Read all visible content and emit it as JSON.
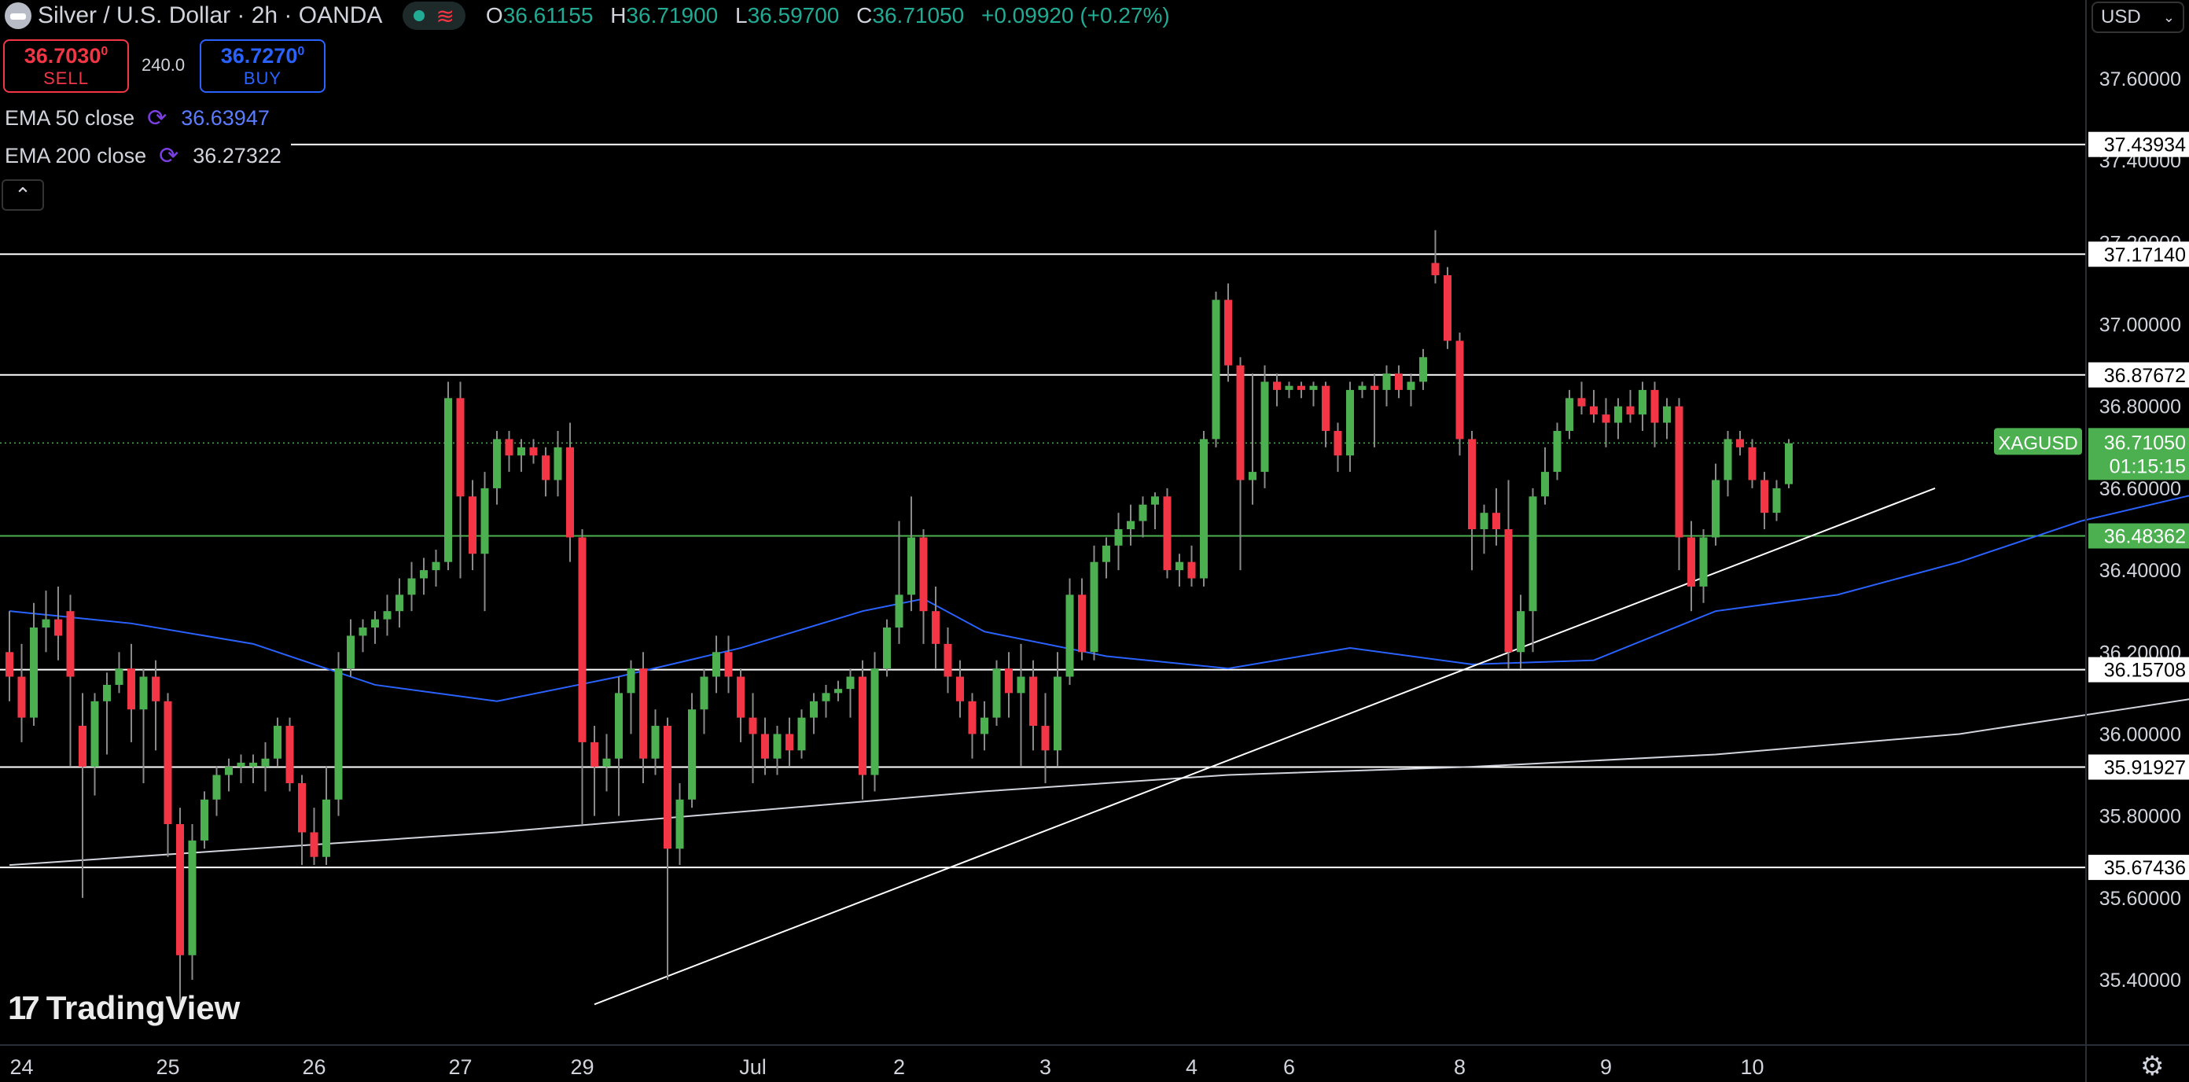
{
  "header": {
    "title": "Silver / U.S. Dollar · 2h · OANDA",
    "ohlc": [
      {
        "key": "O",
        "value": "36.61155"
      },
      {
        "key": "H",
        "value": "36.71900"
      },
      {
        "key": "L",
        "value": "36.59700"
      },
      {
        "key": "C",
        "value": "36.71050"
      }
    ],
    "change": "+0.09920 (+0.27%)",
    "market_status_icon": "green-dot-icon",
    "pill_icon": "wave-icon"
  },
  "trade": {
    "sell_price": "36.7030",
    "sell_price_sup": "0",
    "sell_label": "SELL",
    "spread": "240.0",
    "buy_price": "36.7270",
    "buy_price_sup": "0",
    "buy_label": "BUY"
  },
  "indicators": [
    {
      "name": "EMA 50 close",
      "value": "36.63947",
      "color": "#2962ff"
    },
    {
      "name": "EMA 200 close",
      "value": "36.27322",
      "color": "#d1d4dc"
    }
  ],
  "currency_selector": "USD",
  "branding": {
    "logo_text": "TradingView",
    "logo_mark": "17"
  },
  "colors": {
    "up": "#4caf50",
    "down": "#f23645",
    "ema50": "#2962ff",
    "ema200": "#d1d4dc",
    "level": "#ffffff",
    "current": "#4caf50"
  },
  "chart_data": {
    "type": "candlestick",
    "symbol": "XAGUSD",
    "current_price": "36.71050",
    "countdown": "01:15:15",
    "y_range": [
      35.28,
      37.73
    ],
    "y_ticks": [
      "37.60000",
      "37.40000",
      "37.20000",
      "37.00000",
      "36.80000",
      "36.60000",
      "36.40000",
      "36.20000",
      "36.00000",
      "35.80000",
      "35.60000",
      "35.40000"
    ],
    "x_ticks": [
      {
        "label": "24",
        "pos": 1
      },
      {
        "label": "25",
        "pos": 13
      },
      {
        "label": "26",
        "pos": 25
      },
      {
        "label": "27",
        "pos": 37
      },
      {
        "label": "29",
        "pos": 47
      },
      {
        "label": "Jul",
        "pos": 61
      },
      {
        "label": "2",
        "pos": 73
      },
      {
        "label": "3",
        "pos": 85
      },
      {
        "label": "4",
        "pos": 97
      },
      {
        "label": "6",
        "pos": 105
      },
      {
        "label": "8",
        "pos": 119
      },
      {
        "label": "9",
        "pos": 131
      },
      {
        "label": "10",
        "pos": 143
      }
    ],
    "horizontal_levels": [
      {
        "price": 37.43934,
        "label": "37.43934",
        "style": "white"
      },
      {
        "price": 37.1714,
        "label": "37.17140",
        "style": "white"
      },
      {
        "price": 36.87672,
        "label": "36.87672",
        "style": "white"
      },
      {
        "price": 36.48362,
        "label": "36.48362",
        "style": "green"
      },
      {
        "price": 36.15708,
        "label": "36.15708",
        "style": "white"
      },
      {
        "price": 35.91927,
        "label": "35.91927",
        "style": "white"
      },
      {
        "price": 35.67436,
        "label": "35.67436",
        "style": "white"
      }
    ],
    "trendline": {
      "from": {
        "pos": 48,
        "price": 35.34
      },
      "to": {
        "pos": 158,
        "price": 36.6
      }
    },
    "candles": [
      {
        "o": 36.2,
        "h": 36.3,
        "l": 36.08,
        "c": 36.14
      },
      {
        "o": 36.14,
        "h": 36.22,
        "l": 35.98,
        "c": 36.04
      },
      {
        "o": 36.04,
        "h": 36.32,
        "l": 36.02,
        "c": 36.26
      },
      {
        "o": 36.26,
        "h": 36.35,
        "l": 36.2,
        "c": 36.28
      },
      {
        "o": 36.28,
        "h": 36.36,
        "l": 36.18,
        "c": 36.24
      },
      {
        "o": 36.3,
        "h": 36.34,
        "l": 35.92,
        "c": 36.14
      },
      {
        "o": 36.02,
        "h": 36.1,
        "l": 35.6,
        "c": 35.92
      },
      {
        "o": 35.92,
        "h": 36.1,
        "l": 35.85,
        "c": 36.08
      },
      {
        "o": 36.08,
        "h": 36.15,
        "l": 35.95,
        "c": 36.12
      },
      {
        "o": 36.12,
        "h": 36.2,
        "l": 36.1,
        "c": 36.16
      },
      {
        "o": 36.16,
        "h": 36.22,
        "l": 35.98,
        "c": 36.06
      },
      {
        "o": 36.06,
        "h": 36.16,
        "l": 35.88,
        "c": 36.14
      },
      {
        "o": 36.14,
        "h": 36.18,
        "l": 35.96,
        "c": 36.08
      },
      {
        "o": 36.08,
        "h": 36.1,
        "l": 35.7,
        "c": 35.78
      },
      {
        "o": 35.78,
        "h": 35.82,
        "l": 35.32,
        "c": 35.46
      },
      {
        "o": 35.46,
        "h": 35.78,
        "l": 35.4,
        "c": 35.74
      },
      {
        "o": 35.74,
        "h": 35.86,
        "l": 35.72,
        "c": 35.84
      },
      {
        "o": 35.84,
        "h": 35.92,
        "l": 35.8,
        "c": 35.9
      },
      {
        "o": 35.9,
        "h": 35.94,
        "l": 35.86,
        "c": 35.92
      },
      {
        "o": 35.92,
        "h": 35.95,
        "l": 35.88,
        "c": 35.93
      },
      {
        "o": 35.92,
        "h": 35.95,
        "l": 35.88,
        "c": 35.93
      },
      {
        "o": 35.92,
        "h": 35.98,
        "l": 35.86,
        "c": 35.94
      },
      {
        "o": 35.94,
        "h": 36.04,
        "l": 35.92,
        "c": 36.02
      },
      {
        "o": 36.02,
        "h": 36.04,
        "l": 35.86,
        "c": 35.88
      },
      {
        "o": 35.88,
        "h": 35.9,
        "l": 35.68,
        "c": 35.76
      },
      {
        "o": 35.76,
        "h": 35.82,
        "l": 35.68,
        "c": 35.7
      },
      {
        "o": 35.7,
        "h": 35.92,
        "l": 35.68,
        "c": 35.84
      },
      {
        "o": 35.84,
        "h": 36.2,
        "l": 35.8,
        "c": 36.16
      },
      {
        "o": 36.16,
        "h": 36.28,
        "l": 36.14,
        "c": 36.24
      },
      {
        "o": 36.24,
        "h": 36.28,
        "l": 36.2,
        "c": 36.26
      },
      {
        "o": 36.26,
        "h": 36.3,
        "l": 36.22,
        "c": 36.28
      },
      {
        "o": 36.28,
        "h": 36.34,
        "l": 36.24,
        "c": 36.3
      },
      {
        "o": 36.3,
        "h": 36.38,
        "l": 36.26,
        "c": 36.34
      },
      {
        "o": 36.34,
        "h": 36.42,
        "l": 36.3,
        "c": 36.38
      },
      {
        "o": 36.38,
        "h": 36.43,
        "l": 36.34,
        "c": 36.4
      },
      {
        "o": 36.4,
        "h": 36.45,
        "l": 36.36,
        "c": 36.42
      },
      {
        "o": 36.42,
        "h": 36.86,
        "l": 36.4,
        "c": 36.82
      },
      {
        "o": 36.82,
        "h": 36.86,
        "l": 36.38,
        "c": 36.58
      },
      {
        "o": 36.58,
        "h": 36.62,
        "l": 36.4,
        "c": 36.44
      },
      {
        "o": 36.44,
        "h": 36.64,
        "l": 36.3,
        "c": 36.6
      },
      {
        "o": 36.6,
        "h": 36.74,
        "l": 36.56,
        "c": 36.72
      },
      {
        "o": 36.72,
        "h": 36.74,
        "l": 36.64,
        "c": 36.68
      },
      {
        "o": 36.68,
        "h": 36.72,
        "l": 36.64,
        "c": 36.7
      },
      {
        "o": 36.7,
        "h": 36.72,
        "l": 36.66,
        "c": 36.68
      },
      {
        "o": 36.68,
        "h": 36.7,
        "l": 36.58,
        "c": 36.62
      },
      {
        "o": 36.62,
        "h": 36.74,
        "l": 36.58,
        "c": 36.7
      },
      {
        "o": 36.7,
        "h": 36.76,
        "l": 36.42,
        "c": 36.48
      },
      {
        "o": 36.48,
        "h": 36.5,
        "l": 35.78,
        "c": 35.98
      },
      {
        "o": 35.98,
        "h": 36.02,
        "l": 35.8,
        "c": 35.92
      },
      {
        "o": 35.92,
        "h": 36.0,
        "l": 35.86,
        "c": 35.94
      },
      {
        "o": 35.94,
        "h": 36.14,
        "l": 35.8,
        "c": 36.1
      },
      {
        "o": 36.1,
        "h": 36.18,
        "l": 36.0,
        "c": 36.16
      },
      {
        "o": 36.16,
        "h": 36.2,
        "l": 35.88,
        "c": 35.94
      },
      {
        "o": 35.94,
        "h": 36.06,
        "l": 35.9,
        "c": 36.02
      },
      {
        "o": 36.02,
        "h": 36.04,
        "l": 35.4,
        "c": 35.72
      },
      {
        "o": 35.72,
        "h": 35.88,
        "l": 35.68,
        "c": 35.84
      },
      {
        "o": 35.84,
        "h": 36.1,
        "l": 35.82,
        "c": 36.06
      },
      {
        "o": 36.06,
        "h": 36.16,
        "l": 36.0,
        "c": 36.14
      },
      {
        "o": 36.14,
        "h": 36.24,
        "l": 36.1,
        "c": 36.2
      },
      {
        "o": 36.2,
        "h": 36.24,
        "l": 36.1,
        "c": 36.14
      },
      {
        "o": 36.14,
        "h": 36.16,
        "l": 35.98,
        "c": 36.04
      },
      {
        "o": 36.04,
        "h": 36.1,
        "l": 35.88,
        "c": 36.0
      },
      {
        "o": 36.0,
        "h": 36.04,
        "l": 35.9,
        "c": 35.94
      },
      {
        "o": 35.94,
        "h": 36.02,
        "l": 35.9,
        "c": 36.0
      },
      {
        "o": 36.0,
        "h": 36.04,
        "l": 35.92,
        "c": 35.96
      },
      {
        "o": 35.96,
        "h": 36.06,
        "l": 35.94,
        "c": 36.04
      },
      {
        "o": 36.04,
        "h": 36.1,
        "l": 36.0,
        "c": 36.08
      },
      {
        "o": 36.08,
        "h": 36.12,
        "l": 36.04,
        "c": 36.1
      },
      {
        "o": 36.1,
        "h": 36.13,
        "l": 36.08,
        "c": 36.11
      },
      {
        "o": 36.11,
        "h": 36.16,
        "l": 36.04,
        "c": 36.14
      },
      {
        "o": 36.14,
        "h": 36.18,
        "l": 35.84,
        "c": 35.9
      },
      {
        "o": 35.9,
        "h": 36.2,
        "l": 35.86,
        "c": 36.16
      },
      {
        "o": 36.16,
        "h": 36.28,
        "l": 36.14,
        "c": 36.26
      },
      {
        "o": 36.26,
        "h": 36.52,
        "l": 36.22,
        "c": 36.34
      },
      {
        "o": 36.34,
        "h": 36.58,
        "l": 36.3,
        "c": 36.48
      },
      {
        "o": 36.48,
        "h": 36.5,
        "l": 36.22,
        "c": 36.3
      },
      {
        "o": 36.3,
        "h": 36.36,
        "l": 36.16,
        "c": 36.22
      },
      {
        "o": 36.22,
        "h": 36.26,
        "l": 36.1,
        "c": 36.14
      },
      {
        "o": 36.14,
        "h": 36.18,
        "l": 36.04,
        "c": 36.08
      },
      {
        "o": 36.08,
        "h": 36.1,
        "l": 35.94,
        "c": 36.0
      },
      {
        "o": 36.0,
        "h": 36.08,
        "l": 35.96,
        "c": 36.04
      },
      {
        "o": 36.04,
        "h": 36.18,
        "l": 36.02,
        "c": 36.16
      },
      {
        "o": 36.16,
        "h": 36.2,
        "l": 36.04,
        "c": 36.1
      },
      {
        "o": 36.1,
        "h": 36.22,
        "l": 35.92,
        "c": 36.14
      },
      {
        "o": 36.14,
        "h": 36.18,
        "l": 35.96,
        "c": 36.02
      },
      {
        "o": 36.02,
        "h": 36.1,
        "l": 35.88,
        "c": 35.96
      },
      {
        "o": 35.96,
        "h": 36.2,
        "l": 35.92,
        "c": 36.14
      },
      {
        "o": 36.14,
        "h": 36.38,
        "l": 36.12,
        "c": 36.34
      },
      {
        "o": 36.34,
        "h": 36.38,
        "l": 36.18,
        "c": 36.2
      },
      {
        "o": 36.2,
        "h": 36.46,
        "l": 36.18,
        "c": 36.42
      },
      {
        "o": 36.42,
        "h": 36.48,
        "l": 36.38,
        "c": 36.46
      },
      {
        "o": 36.46,
        "h": 36.54,
        "l": 36.4,
        "c": 36.5
      },
      {
        "o": 36.5,
        "h": 36.56,
        "l": 36.46,
        "c": 36.52
      },
      {
        "o": 36.52,
        "h": 36.58,
        "l": 36.48,
        "c": 36.56
      },
      {
        "o": 36.56,
        "h": 36.59,
        "l": 36.5,
        "c": 36.58
      },
      {
        "o": 36.58,
        "h": 36.6,
        "l": 36.38,
        "c": 36.4
      },
      {
        "o": 36.4,
        "h": 36.44,
        "l": 36.36,
        "c": 36.42
      },
      {
        "o": 36.42,
        "h": 36.46,
        "l": 36.36,
        "c": 36.38
      },
      {
        "o": 36.38,
        "h": 36.74,
        "l": 36.36,
        "c": 36.72
      },
      {
        "o": 36.72,
        "h": 37.08,
        "l": 36.7,
        "c": 37.06
      },
      {
        "o": 37.06,
        "h": 37.1,
        "l": 36.86,
        "c": 36.9
      },
      {
        "o": 36.9,
        "h": 36.92,
        "l": 36.4,
        "c": 36.62
      },
      {
        "o": 36.62,
        "h": 36.88,
        "l": 36.56,
        "c": 36.64
      },
      {
        "o": 36.64,
        "h": 36.9,
        "l": 36.6,
        "c": 36.86
      },
      {
        "o": 36.86,
        "h": 36.88,
        "l": 36.8,
        "c": 36.84
      },
      {
        "o": 36.84,
        "h": 36.86,
        "l": 36.82,
        "c": 36.85
      },
      {
        "o": 36.85,
        "h": 36.86,
        "l": 36.82,
        "c": 36.84
      },
      {
        "o": 36.84,
        "h": 36.86,
        "l": 36.8,
        "c": 36.85
      },
      {
        "o": 36.85,
        "h": 36.86,
        "l": 36.7,
        "c": 36.74
      },
      {
        "o": 36.74,
        "h": 36.76,
        "l": 36.64,
        "c": 36.68
      },
      {
        "o": 36.68,
        "h": 36.86,
        "l": 36.64,
        "c": 36.84
      },
      {
        "o": 36.84,
        "h": 36.86,
        "l": 36.82,
        "c": 36.85
      },
      {
        "o": 36.85,
        "h": 36.88,
        "l": 36.7,
        "c": 36.84
      },
      {
        "o": 36.84,
        "h": 36.9,
        "l": 36.8,
        "c": 36.88
      },
      {
        "o": 36.88,
        "h": 36.9,
        "l": 36.82,
        "c": 36.84
      },
      {
        "o": 36.84,
        "h": 36.88,
        "l": 36.8,
        "c": 36.86
      },
      {
        "o": 36.86,
        "h": 36.94,
        "l": 36.84,
        "c": 36.92
      },
      {
        "o": 37.15,
        "h": 37.23,
        "l": 37.1,
        "c": 37.12
      },
      {
        "o": 37.12,
        "h": 37.14,
        "l": 36.94,
        "c": 36.96
      },
      {
        "o": 36.96,
        "h": 36.98,
        "l": 36.68,
        "c": 36.72
      },
      {
        "o": 36.72,
        "h": 36.74,
        "l": 36.4,
        "c": 36.5
      },
      {
        "o": 36.5,
        "h": 36.56,
        "l": 36.44,
        "c": 36.54
      },
      {
        "o": 36.54,
        "h": 36.6,
        "l": 36.46,
        "c": 36.5
      },
      {
        "o": 36.5,
        "h": 36.62,
        "l": 36.16,
        "c": 36.2
      },
      {
        "o": 36.2,
        "h": 36.34,
        "l": 36.16,
        "c": 36.3
      },
      {
        "o": 36.3,
        "h": 36.6,
        "l": 36.2,
        "c": 36.58
      },
      {
        "o": 36.58,
        "h": 36.7,
        "l": 36.56,
        "c": 36.64
      },
      {
        "o": 36.64,
        "h": 36.76,
        "l": 36.62,
        "c": 36.74
      },
      {
        "o": 36.74,
        "h": 36.84,
        "l": 36.72,
        "c": 36.82
      },
      {
        "o": 36.82,
        "h": 36.86,
        "l": 36.78,
        "c": 36.8
      },
      {
        "o": 36.8,
        "h": 36.84,
        "l": 36.76,
        "c": 36.78
      },
      {
        "o": 36.78,
        "h": 36.82,
        "l": 36.7,
        "c": 36.76
      },
      {
        "o": 36.76,
        "h": 36.82,
        "l": 36.72,
        "c": 36.8
      },
      {
        "o": 36.8,
        "h": 36.84,
        "l": 36.76,
        "c": 36.78
      },
      {
        "o": 36.78,
        "h": 36.86,
        "l": 36.74,
        "c": 36.84
      },
      {
        "o": 36.84,
        "h": 36.86,
        "l": 36.7,
        "c": 36.76
      },
      {
        "o": 36.76,
        "h": 36.82,
        "l": 36.72,
        "c": 36.8
      },
      {
        "o": 36.8,
        "h": 36.82,
        "l": 36.4,
        "c": 36.48
      },
      {
        "o": 36.48,
        "h": 36.52,
        "l": 36.3,
        "c": 36.36
      },
      {
        "o": 36.36,
        "h": 36.5,
        "l": 36.32,
        "c": 36.48
      },
      {
        "o": 36.48,
        "h": 36.66,
        "l": 36.46,
        "c": 36.62
      },
      {
        "o": 36.62,
        "h": 36.74,
        "l": 36.58,
        "c": 36.72
      },
      {
        "o": 36.72,
        "h": 36.74,
        "l": 36.68,
        "c": 36.7
      },
      {
        "o": 36.7,
        "h": 36.72,
        "l": 36.6,
        "c": 36.62
      },
      {
        "o": 36.62,
        "h": 36.64,
        "l": 36.5,
        "c": 36.54
      },
      {
        "o": 36.54,
        "h": 36.62,
        "l": 36.52,
        "c": 36.6
      },
      {
        "o": 36.61,
        "h": 36.72,
        "l": 36.6,
        "c": 36.71
      }
    ],
    "ema50": [
      {
        "pos": 0,
        "price": 36.3
      },
      {
        "pos": 10,
        "price": 36.27
      },
      {
        "pos": 20,
        "price": 36.22
      },
      {
        "pos": 30,
        "price": 36.12
      },
      {
        "pos": 40,
        "price": 36.08
      },
      {
        "pos": 50,
        "price": 36.14
      },
      {
        "pos": 60,
        "price": 36.21
      },
      {
        "pos": 70,
        "price": 36.3
      },
      {
        "pos": 75,
        "price": 36.33
      },
      {
        "pos": 80,
        "price": 36.25
      },
      {
        "pos": 90,
        "price": 36.19
      },
      {
        "pos": 100,
        "price": 36.16
      },
      {
        "pos": 110,
        "price": 36.21
      },
      {
        "pos": 120,
        "price": 36.17
      },
      {
        "pos": 130,
        "price": 36.18
      },
      {
        "pos": 140,
        "price": 36.3
      },
      {
        "pos": 150,
        "price": 36.34
      },
      {
        "pos": 160,
        "price": 36.42
      },
      {
        "pos": 170,
        "price": 36.52
      },
      {
        "pos": 180,
        "price": 36.59
      },
      {
        "pos": 190,
        "price": 36.61
      },
      {
        "pos": 200,
        "price": 36.62
      },
      {
        "pos": 210,
        "price": 36.63
      },
      {
        "pos": 237,
        "price": 36.62
      }
    ],
    "ema200": [
      {
        "pos": 0,
        "price": 35.68
      },
      {
        "pos": 20,
        "price": 35.72
      },
      {
        "pos": 40,
        "price": 35.76
      },
      {
        "pos": 60,
        "price": 35.81
      },
      {
        "pos": 80,
        "price": 35.86
      },
      {
        "pos": 100,
        "price": 35.9
      },
      {
        "pos": 120,
        "price": 35.92
      },
      {
        "pos": 140,
        "price": 35.95
      },
      {
        "pos": 160,
        "price": 36.0
      },
      {
        "pos": 180,
        "price": 36.09
      },
      {
        "pos": 200,
        "price": 36.17
      },
      {
        "pos": 220,
        "price": 36.22
      },
      {
        "pos": 237,
        "price": 36.27
      }
    ]
  }
}
